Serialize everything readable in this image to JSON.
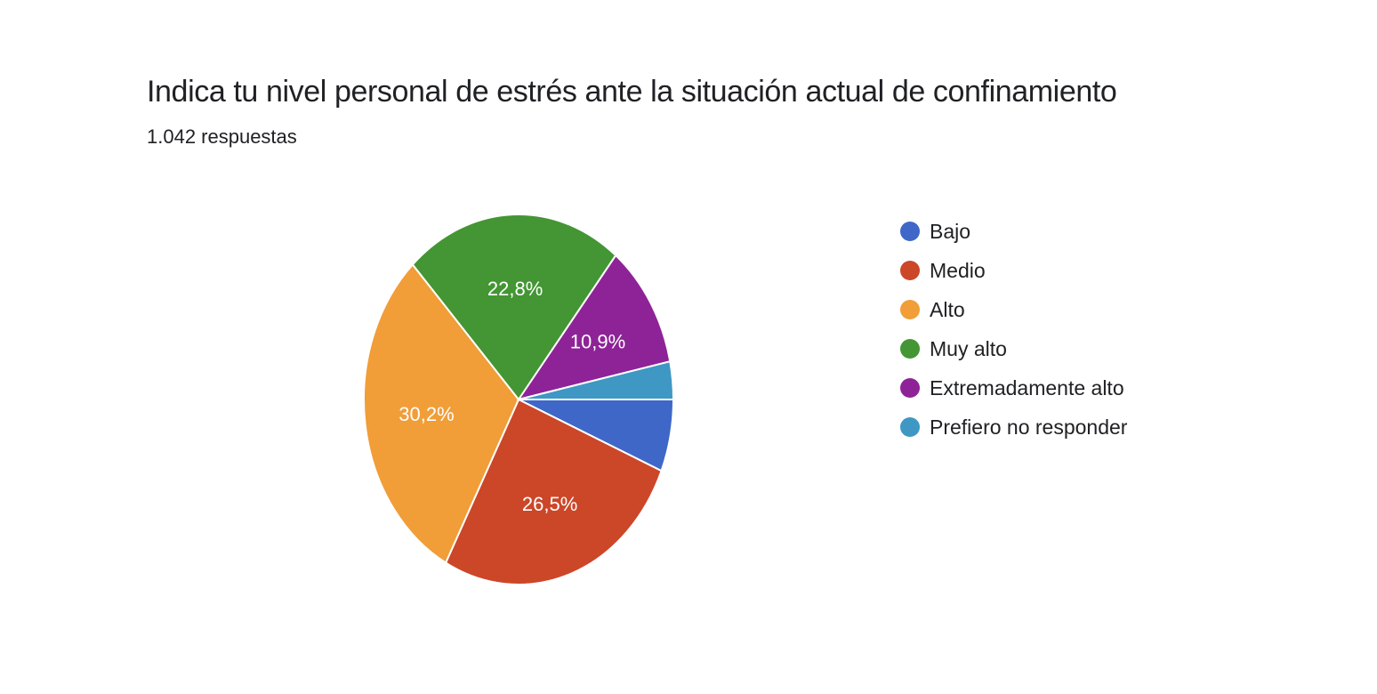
{
  "chart_data": {
    "type": "pie",
    "title": "Indica tu nivel personal de estrés ante la situación actual de confinamiento",
    "subtitle": "1.042 respuestas",
    "start_angle_deg": 90,
    "direction": "clockwise",
    "legend_position": "right",
    "slices": [
      {
        "name": "Bajo",
        "value": 6.3,
        "label": "",
        "color": "#3f67c8"
      },
      {
        "name": "Medio",
        "value": 26.5,
        "label": "26,5%",
        "color": "#cc4628"
      },
      {
        "name": "Alto",
        "value": 30.2,
        "label": "30,2%",
        "color": "#f19d38"
      },
      {
        "name": "Muy alto",
        "value": 22.8,
        "label": "22,8%",
        "color": "#439633"
      },
      {
        "name": "Extremadamente alto",
        "value": 10.9,
        "label": "10,9%",
        "color": "#8e2397"
      },
      {
        "name": "Prefiero no responder",
        "value": 3.3,
        "label": "",
        "color": "#3f97c4"
      }
    ]
  }
}
